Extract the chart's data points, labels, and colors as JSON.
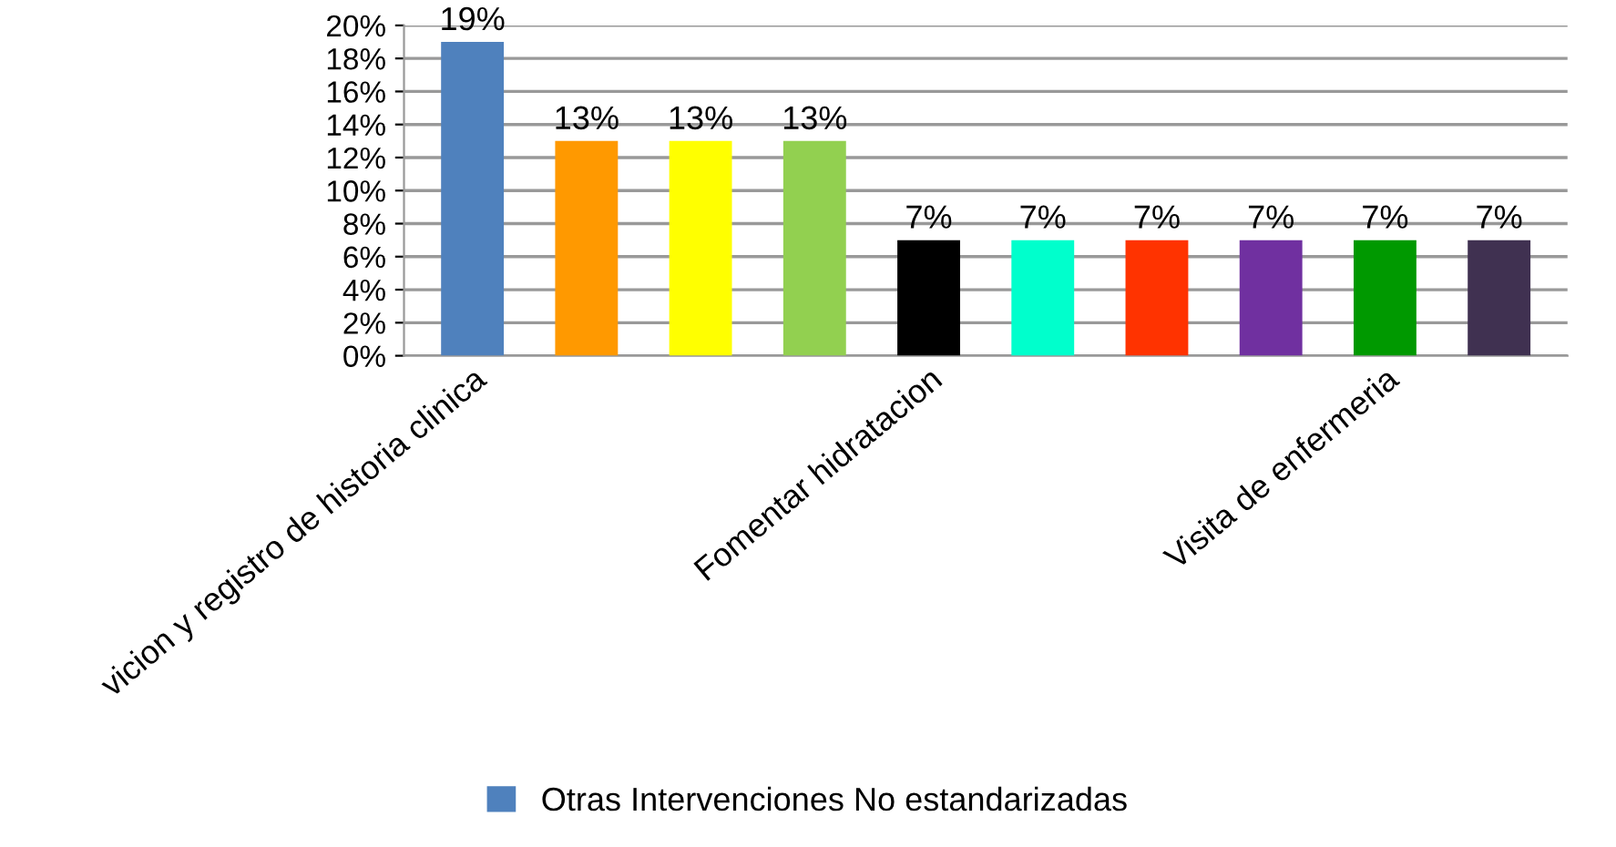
{
  "chart_data": {
    "type": "bar",
    "categories": [
      "vicion y registro de historia clinica",
      null,
      null,
      null,
      "Fomentar hidratacion",
      null,
      null,
      null,
      "Visita de enfermeria",
      null
    ],
    "series": [
      {
        "name": "Otras Intervenciones No estandarizadas",
        "color": "#4f81bd",
        "values": [
          19,
          13,
          13,
          13,
          7,
          7,
          7,
          7,
          7,
          7
        ],
        "colors": [
          "#4f81bd",
          "#ff9900",
          "#ffff00",
          "#92d050",
          "#000000",
          "#00ffcc",
          "#ff3300",
          "#7030a0",
          "#009900",
          "#403151"
        ],
        "value_labels": [
          "19%",
          "13%",
          "13%",
          "13%",
          "7%",
          "7%",
          "7%",
          "7%",
          "7%",
          "7%"
        ]
      }
    ],
    "ylim": [
      0,
      20
    ],
    "yticks": [
      {
        "value": 0,
        "label": "0%"
      },
      {
        "value": 2,
        "label": "2%"
      },
      {
        "value": 4,
        "label": "4%"
      },
      {
        "value": 6,
        "label": "6%"
      },
      {
        "value": 8,
        "label": "8%"
      },
      {
        "value": 10,
        "label": "10%"
      },
      {
        "value": 12,
        "label": "12%"
      },
      {
        "value": 14,
        "label": "14%"
      },
      {
        "value": 16,
        "label": "16%"
      },
      {
        "value": 18,
        "label": "18%"
      },
      {
        "value": 20,
        "label": "20%"
      }
    ],
    "grid": "y",
    "legend": "bottom"
  }
}
